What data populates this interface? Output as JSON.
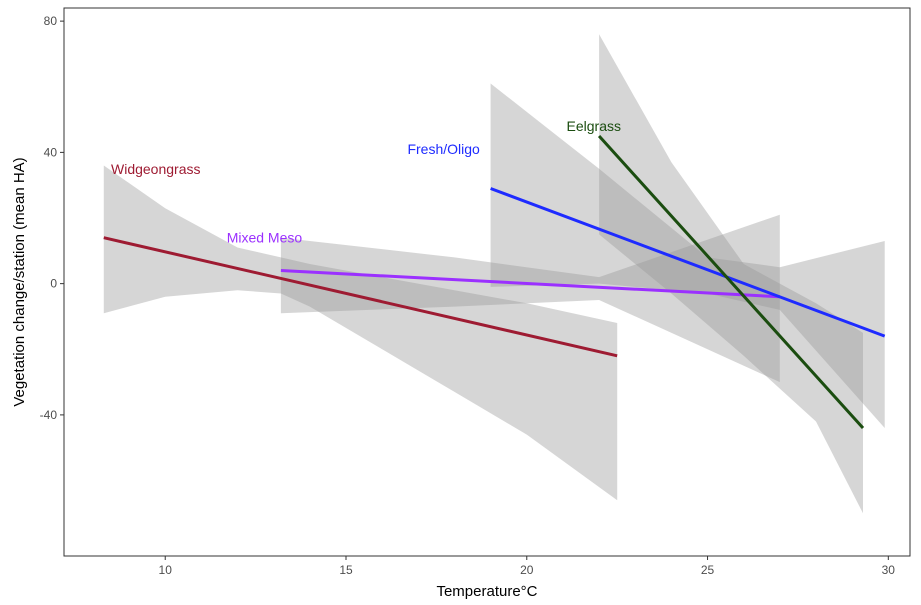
{
  "chart_data": {
    "type": "line",
    "title": "",
    "xlabel": "Temperature°C",
    "ylabel": "Vegetation change/station (mean HA)",
    "xlim": [
      7.2,
      30.6
    ],
    "ylim": [
      -83,
      84
    ],
    "xticks": [
      10,
      15,
      20,
      25,
      30
    ],
    "yticks": [
      -40,
      0,
      40,
      80
    ],
    "grid": false,
    "legend": "none",
    "series": [
      {
        "name": "Widgeongrass",
        "color": "#9e1b32",
        "line": [
          [
            8.3,
            14
          ],
          [
            22.5,
            -22
          ]
        ],
        "band_upper": [
          [
            8.3,
            36
          ],
          [
            10,
            23
          ],
          [
            12,
            11
          ],
          [
            13.2,
            8
          ],
          [
            14,
            6
          ],
          [
            16,
            2
          ],
          [
            18,
            -2
          ],
          [
            20,
            -6
          ],
          [
            22.5,
            -12
          ]
        ],
        "band_lower": [
          [
            8.3,
            -9
          ],
          [
            10,
            -4
          ],
          [
            12,
            -2
          ],
          [
            13.2,
            -3
          ],
          [
            14,
            -7
          ],
          [
            16,
            -20
          ],
          [
            18,
            -33
          ],
          [
            20,
            -46
          ],
          [
            22.5,
            -66
          ]
        ],
        "label_at": [
          8.5,
          35
        ]
      },
      {
        "name": "Mixed Meso",
        "color": "#9b30ff",
        "line": [
          [
            13.2,
            4
          ],
          [
            27,
            -4
          ]
        ],
        "band_upper": [
          [
            13.2,
            14
          ],
          [
            18,
            8
          ],
          [
            22,
            2
          ],
          [
            27,
            21
          ]
        ],
        "band_lower": [
          [
            13.2,
            -9
          ],
          [
            18,
            -7
          ],
          [
            22,
            -5
          ],
          [
            27,
            -30
          ]
        ],
        "label_at": [
          11.7,
          14
        ]
      },
      {
        "name": "Fresh/Oligo",
        "color": "#1e2bff",
        "line": [
          [
            19,
            29
          ],
          [
            29.9,
            -16
          ]
        ],
        "band_upper": [
          [
            19,
            61
          ],
          [
            22,
            35
          ],
          [
            25,
            8
          ],
          [
            27,
            5
          ],
          [
            29.9,
            13
          ]
        ],
        "band_lower": [
          [
            19,
            -1
          ],
          [
            22,
            0
          ],
          [
            25,
            -3
          ],
          [
            27,
            -8
          ],
          [
            29.9,
            -44
          ]
        ],
        "label_at": [
          16.7,
          41
        ]
      },
      {
        "name": "Eelgrass",
        "color": "#1b4d10",
        "line": [
          [
            22,
            45
          ],
          [
            29.3,
            -44
          ]
        ],
        "band_upper": [
          [
            22,
            76
          ],
          [
            24,
            37
          ],
          [
            26,
            6
          ],
          [
            28,
            -6
          ],
          [
            29.3,
            -15
          ]
        ],
        "band_lower": [
          [
            22,
            15
          ],
          [
            24,
            -3
          ],
          [
            26,
            -22
          ],
          [
            28,
            -42
          ],
          [
            29.3,
            -70
          ]
        ],
        "label_at": [
          21.1,
          48
        ]
      }
    ]
  }
}
